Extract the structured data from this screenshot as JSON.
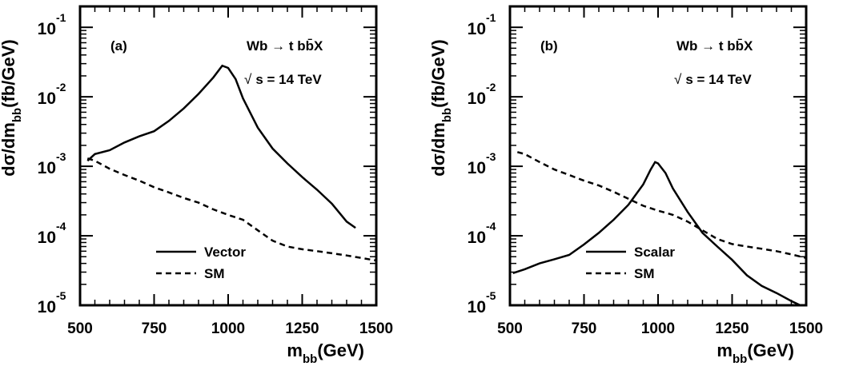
{
  "chart_data": [
    {
      "type": "line",
      "panel_label": "(a)",
      "process": {
        "main": "Wb → t b",
        "bbar": "b̄",
        "tail": "X"
      },
      "energy": {
        "root": "√",
        "text": "s = 14 TeV"
      },
      "xlabel": {
        "main": "m",
        "sub": "bb",
        "unit": "(GeV)"
      },
      "ylabel": {
        "main": "dσ/dm",
        "sub": "bb",
        "unit": "(fb/GeV)"
      },
      "xlim": [
        500,
        1500
      ],
      "ylim": [
        1e-05,
        0.2
      ],
      "yscale": "log",
      "xticks": [
        "500",
        "750",
        "1000",
        "1250",
        "1500"
      ],
      "yticks": [
        {
          "base": "10",
          "exp": "-5"
        },
        {
          "base": "10",
          "exp": "-4"
        },
        {
          "base": "10",
          "exp": "-3"
        },
        {
          "base": "10",
          "exp": "-2"
        },
        {
          "base": "10",
          "exp": "-1"
        }
      ],
      "series": [
        {
          "name": "Vector",
          "style": "solid",
          "x": [
            525,
            550,
            600,
            650,
            700,
            750,
            800,
            850,
            900,
            950,
            980,
            1000,
            1025,
            1050,
            1100,
            1150,
            1200,
            1250,
            1300,
            1350,
            1400,
            1430
          ],
          "y": [
            0.0012,
            0.0015,
            0.0017,
            0.0022,
            0.0027,
            0.0032,
            0.0045,
            0.0068,
            0.011,
            0.019,
            0.028,
            0.026,
            0.018,
            0.0095,
            0.0036,
            0.0018,
            0.0011,
            0.0007,
            0.00046,
            0.00029,
            0.00016,
            0.00013
          ]
        },
        {
          "name": "SM",
          "style": "dashed",
          "x": [
            525,
            550,
            600,
            650,
            700,
            750,
            800,
            850,
            900,
            950,
            1000,
            1050,
            1100,
            1150,
            1200,
            1250,
            1300,
            1350,
            1400,
            1450,
            1500
          ],
          "y": [
            0.0013,
            0.0012,
            0.00092,
            0.00075,
            0.00062,
            0.0005,
            0.00042,
            0.00035,
            0.0003,
            0.00024,
            0.0002,
            0.00017,
            0.00012,
            8.5e-05,
            7e-05,
            6.4e-05,
            6e-05,
            5.6e-05,
            5.2e-05,
            4.8e-05,
            4.4e-05
          ]
        }
      ],
      "legend": [
        {
          "label": "Vector",
          "style": "solid"
        },
        {
          "label": "SM",
          "style": "dashed"
        }
      ],
      "legend_position": "bottom-center"
    },
    {
      "type": "line",
      "panel_label": "(b)",
      "process": {
        "main": "Wb → t b",
        "bbar": "b̄",
        "tail": "X"
      },
      "energy": {
        "root": "√",
        "text": "s = 14 TeV"
      },
      "xlabel": {
        "main": "m",
        "sub": "bb",
        "unit": "(GeV)"
      },
      "ylabel": {
        "main": "dσ/dm",
        "sub": "bb",
        "unit": "(fb/GeV)"
      },
      "xlim": [
        500,
        1500
      ],
      "ylim": [
        1e-05,
        0.2
      ],
      "yscale": "log",
      "xticks": [
        "500",
        "750",
        "1000",
        "1250",
        "1500"
      ],
      "yticks": [
        {
          "base": "10",
          "exp": "-5"
        },
        {
          "base": "10",
          "exp": "-4"
        },
        {
          "base": "10",
          "exp": "-3"
        },
        {
          "base": "10",
          "exp": "-2"
        },
        {
          "base": "10",
          "exp": "-1"
        }
      ],
      "series": [
        {
          "name": "Scalar",
          "style": "solid",
          "x": [
            510,
            550,
            600,
            650,
            700,
            750,
            800,
            850,
            900,
            950,
            975,
            990,
            1000,
            1025,
            1050,
            1100,
            1150,
            1200,
            1250,
            1300,
            1350,
            1400,
            1450,
            1480
          ],
          "y": [
            2.9e-05,
            3.3e-05,
            4e-05,
            4.6e-05,
            5.3e-05,
            7.5e-05,
            0.00011,
            0.00017,
            0.00028,
            0.00055,
            0.0009,
            0.00115,
            0.0011,
            0.0008,
            0.00048,
            0.00022,
            0.00011,
            7e-05,
            4.5e-05,
            2.7e-05,
            1.9e-05,
            1.5e-05,
            1.15e-05,
            1e-05
          ]
        },
        {
          "name": "SM",
          "style": "dashed",
          "x": [
            525,
            550,
            600,
            650,
            700,
            750,
            800,
            850,
            900,
            950,
            1000,
            1050,
            1100,
            1150,
            1200,
            1250,
            1300,
            1350,
            1400,
            1450,
            1500
          ],
          "y": [
            0.0016,
            0.0015,
            0.00115,
            0.0009,
            0.00075,
            0.00062,
            0.00053,
            0.00043,
            0.00034,
            0.00027,
            0.00023,
            0.0002,
            0.00016,
            0.00012,
            9e-05,
            7.6e-05,
            7e-05,
            6.5e-05,
            6e-05,
            5.4e-05,
            4.8e-05
          ]
        }
      ],
      "legend": [
        {
          "label": "Scalar",
          "style": "solid"
        },
        {
          "label": "SM",
          "style": "dashed"
        }
      ],
      "legend_position": "bottom-center"
    }
  ]
}
